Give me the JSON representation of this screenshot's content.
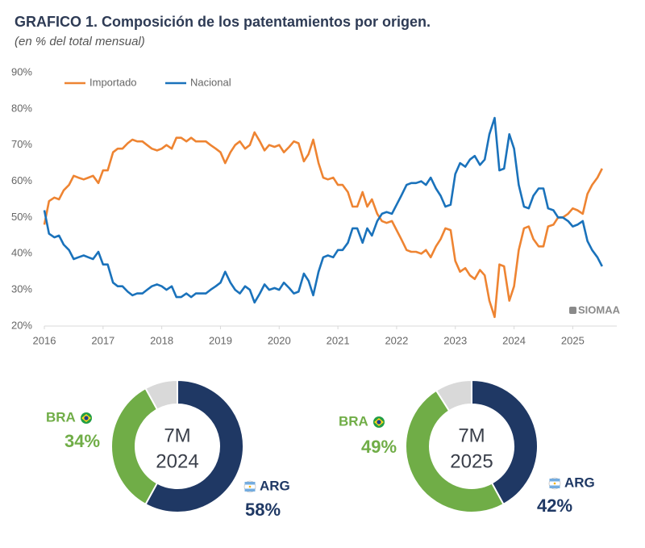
{
  "title": "GRAFICO 1. Composición de los patentamientos por origen.",
  "subtitle": "(en % del total mensual)",
  "chart_data": [
    {
      "type": "line",
      "legend": "upper left",
      "grid": false,
      "watermark": "SIOMAA",
      "xlim": [
        2016,
        2025.75
      ],
      "xticks": [
        2016,
        2017,
        2018,
        2019,
        2020,
        2021,
        2022,
        2023,
        2024,
        2025
      ],
      "ylim": [
        20,
        90
      ],
      "yticks": [
        {
          "value": 20,
          "label": "20%"
        },
        {
          "value": 30,
          "label": "30%"
        },
        {
          "value": 40,
          "label": "40%"
        },
        {
          "value": 50,
          "label": "50%"
        },
        {
          "value": 60,
          "label": "60%"
        },
        {
          "value": 70,
          "label": "70%"
        },
        {
          "value": 80,
          "label": "80%"
        },
        {
          "value": 90,
          "label": "90%"
        }
      ],
      "x": [
        2016,
        2016.08,
        2016.17,
        2016.25,
        2016.33,
        2016.42,
        2016.5,
        2016.58,
        2016.67,
        2016.75,
        2016.83,
        2016.92,
        2017,
        2017.08,
        2017.17,
        2017.25,
        2017.33,
        2017.42,
        2017.5,
        2017.58,
        2017.67,
        2017.75,
        2017.83,
        2017.92,
        2018,
        2018.08,
        2018.17,
        2018.25,
        2018.33,
        2018.42,
        2018.5,
        2018.58,
        2018.67,
        2018.75,
        2018.83,
        2018.92,
        2019,
        2019.08,
        2019.17,
        2019.25,
        2019.33,
        2019.42,
        2019.5,
        2019.58,
        2019.67,
        2019.75,
        2019.83,
        2019.92,
        2020,
        2020.08,
        2020.17,
        2020.25,
        2020.33,
        2020.42,
        2020.5,
        2020.58,
        2020.67,
        2020.75,
        2020.83,
        2020.92,
        2021,
        2021.08,
        2021.17,
        2021.25,
        2021.33,
        2021.42,
        2021.5,
        2021.58,
        2021.67,
        2021.75,
        2021.83,
        2021.92,
        2022,
        2022.08,
        2022.17,
        2022.25,
        2022.33,
        2022.42,
        2022.5,
        2022.58,
        2022.67,
        2022.75,
        2022.83,
        2022.92,
        2023,
        2023.08,
        2023.17,
        2023.25,
        2023.33,
        2023.42,
        2023.5,
        2023.58,
        2023.67,
        2023.75,
        2023.83,
        2023.92,
        2024,
        2024.08,
        2024.17,
        2024.25,
        2024.33,
        2024.42,
        2024.5,
        2024.58,
        2024.67,
        2024.75,
        2024.83,
        2024.92,
        2025,
        2025.08,
        2025.17,
        2025.25,
        2025.33,
        2025.42,
        2025.5
      ],
      "series": [
        {
          "name": "Importado",
          "color": "#ee8432",
          "values": [
            48,
            54.5,
            55.5,
            55,
            57.5,
            59,
            61.5,
            61,
            60.5,
            61,
            61.5,
            59.5,
            63,
            63,
            68,
            69,
            69,
            70.5,
            71.5,
            71,
            71,
            70,
            69,
            68.5,
            69,
            70,
            69,
            72,
            72,
            71,
            72,
            71,
            71,
            71,
            70,
            69,
            68,
            65,
            68,
            70,
            71,
            69,
            70,
            73.5,
            71,
            68.5,
            70,
            69.5,
            70,
            68,
            69.5,
            71,
            70.5,
            65.5,
            67.5,
            71.5,
            65,
            61,
            60.5,
            61,
            59,
            59,
            57,
            53,
            53,
            57,
            53,
            55,
            51,
            49,
            48.5,
            49,
            46.5,
            44,
            41,
            40.5,
            40.5,
            40,
            41,
            39,
            42,
            44,
            47,
            46.5,
            38,
            35,
            36,
            34,
            33,
            35.5,
            34,
            27,
            22.5,
            37,
            36.5,
            27,
            31,
            41,
            47,
            47.5,
            44,
            42,
            42,
            47.5,
            48,
            50,
            50,
            51,
            52.5,
            52,
            51,
            56.5,
            59,
            61,
            63.5
          ]
        },
        {
          "name": "Nacional",
          "color": "#1a72bb",
          "values": [
            52,
            45.5,
            44.5,
            45,
            42.5,
            41,
            38.5,
            39,
            39.5,
            39,
            38.5,
            40.5,
            37,
            37,
            32,
            31,
            31,
            29.5,
            28.5,
            29,
            29,
            30,
            31,
            31.5,
            31,
            30,
            31,
            28,
            28,
            29,
            28,
            29,
            29,
            29,
            30,
            31,
            32,
            35,
            32,
            30,
            29,
            31,
            30,
            26.5,
            29,
            31.5,
            30,
            30.5,
            30,
            32,
            30.5,
            29,
            29.5,
            34.5,
            32.5,
            28.5,
            35,
            39,
            39.5,
            39,
            41,
            41,
            43,
            47,
            47,
            43,
            47,
            45,
            49,
            51,
            51.5,
            51,
            53.5,
            56,
            59,
            59.5,
            59.5,
            60,
            59,
            61,
            58,
            56,
            53,
            53.5,
            62,
            65,
            64,
            66,
            67,
            64.5,
            66,
            73,
            77.5,
            63,
            63.5,
            73,
            69,
            59,
            53,
            52.5,
            56,
            58,
            58,
            52.5,
            52,
            50,
            50,
            49,
            47.5,
            48,
            49,
            43.5,
            41,
            39,
            36.5
          ]
        }
      ]
    },
    {
      "type": "donut",
      "center_text": [
        "7M",
        "2024"
      ],
      "categories": [
        "ARG",
        "BRA",
        null
      ],
      "values": [
        58,
        34,
        8
      ],
      "value_labels": [
        "58%",
        "34%",
        null
      ],
      "colors": [
        "#1f3864",
        "#70ad47",
        "#d9d9d9"
      ]
    },
    {
      "type": "donut",
      "center_text": [
        "7M",
        "2025"
      ],
      "categories": [
        "ARG",
        "BRA",
        null
      ],
      "values": [
        42,
        49,
        9
      ],
      "value_labels": [
        "42%",
        "49%",
        null
      ],
      "colors": [
        "#1f3864",
        "#70ad47",
        "#d9d9d9"
      ]
    }
  ]
}
